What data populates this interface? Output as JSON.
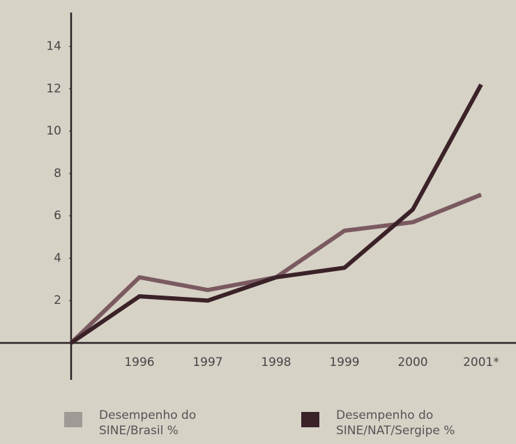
{
  "chart_data": {
    "type": "line",
    "categories": [
      null,
      "1996",
      "1997",
      "1998",
      "1999",
      "2000",
      "2001*"
    ],
    "series": [
      {
        "name": "Desempenho do SINE/Brasil %",
        "color": "#7a5a60",
        "values": [
          0,
          3.1,
          2.5,
          3.1,
          5.3,
          5.7,
          7.0
        ]
      },
      {
        "name": "Desempenho do SINE/NAT/Sergipe %",
        "color": "#3a2228",
        "values": [
          0,
          2.2,
          2.0,
          3.1,
          3.55,
          6.3,
          12.2
        ]
      }
    ],
    "ylim": [
      0,
      15.6
    ],
    "yticks": [
      2,
      4,
      6,
      8,
      10,
      12,
      14
    ],
    "grid": false
  }
}
